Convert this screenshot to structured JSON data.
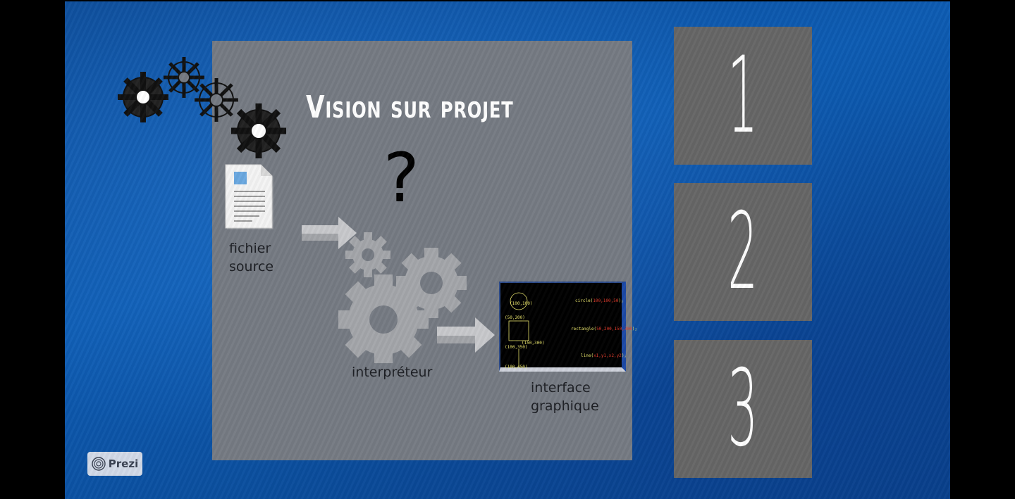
{
  "slide": {
    "title": "Vision sur projet",
    "question_mark": "?",
    "labels": {
      "source": "fichier\nsource",
      "interpreter": "interpréteur",
      "gui": "interface\ngraphique"
    },
    "screen_text": {
      "p1": "(100,100)",
      "p2": "(50,200)",
      "p3": "(150,300)",
      "p4": "(100,350)",
      "p5": "(100,450)",
      "cmd_circle_name": "circle(",
      "cmd_circle_args": "100,100,50",
      "cmd_circle_end": ");",
      "cmd_rect_name": "rectangle(",
      "cmd_rect_args": "50,200,150,300",
      "cmd_rect_end": ");",
      "cmd_line_name": "line(",
      "cmd_line_args": "x1,y1,x2,y2",
      "cmd_line_end": ");"
    }
  },
  "side_boxes": [
    {
      "number": "1"
    },
    {
      "number": "2"
    },
    {
      "number": "3"
    }
  ],
  "badge": {
    "label": "Prezi"
  },
  "colors": {
    "background_blue": "#0d5cb3",
    "frame_gray": "#767b83",
    "box_gray": "#666666",
    "text_white": "#ffffff"
  },
  "icons": [
    "sketch-gears-icon",
    "document-icon",
    "arrow-right-icon",
    "gears-icon",
    "prezi-logo-icon"
  ]
}
